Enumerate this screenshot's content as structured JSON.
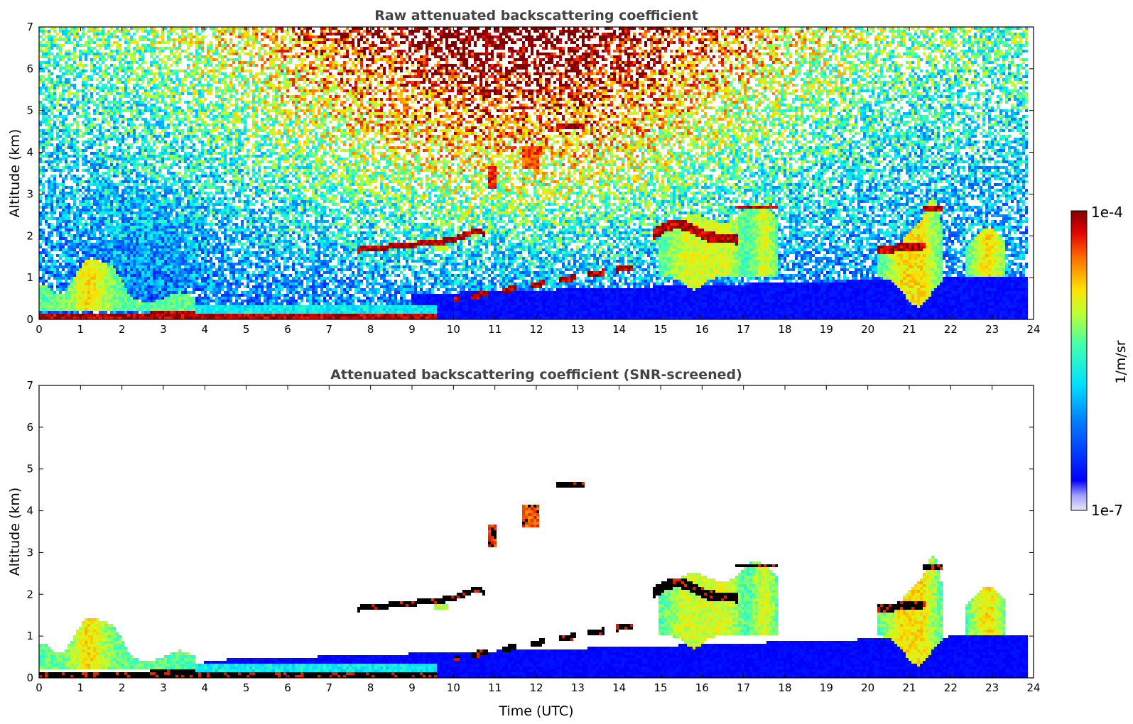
{
  "chart_data": [
    {
      "type": "heatmap",
      "title": "Raw attenuated backscattering coefficient",
      "xlabel": "",
      "ylabel": "Altitude (km)",
      "xlim": [
        0,
        24
      ],
      "ylim": [
        0,
        7
      ],
      "xticks": [
        0,
        1,
        2,
        3,
        4,
        5,
        6,
        7,
        8,
        9,
        10,
        11,
        12,
        13,
        14,
        15,
        16,
        17,
        18,
        19,
        20,
        21,
        22,
        23,
        24
      ],
      "yticks": [
        0,
        1,
        2,
        3,
        4,
        5,
        6,
        7
      ],
      "x_data_end": 23.8,
      "colormap": "jet",
      "color_scale": "log",
      "clim": [
        1e-07,
        0.0001
      ],
      "features": [
        {
          "kind": "surface-layer",
          "x": [
            0,
            9.5
          ],
          "y_top": 0.25,
          "value": "1e-4"
        },
        {
          "kind": "low-cloud",
          "x": [
            0,
            3.7
          ],
          "y": [
            0.2,
            1.6
          ],
          "value": "2e-6"
        },
        {
          "kind": "aerosol-layer",
          "x": [
            7.7,
            10.8
          ],
          "y": [
            1.6,
            2.3
          ],
          "value": "1e-4"
        },
        {
          "kind": "cloud",
          "x": [
            10.8,
            11.1
          ],
          "y": [
            3.1,
            3.7
          ],
          "value": "1e-4"
        },
        {
          "kind": "cloud",
          "x": [
            11.6,
            12.1
          ],
          "y": [
            3.6,
            4.2
          ],
          "value": "1e-4"
        },
        {
          "kind": "cloud",
          "x": [
            12.4,
            13.2
          ],
          "y": [
            4.5,
            4.7
          ],
          "value": "1e-4"
        },
        {
          "kind": "cloud",
          "x": [
            14.8,
            17.7
          ],
          "y": [
            0.8,
            2.7
          ],
          "value": "1e-5"
        },
        {
          "kind": "cloud",
          "x": [
            20.3,
            23.2
          ],
          "y": [
            0.4,
            2.8
          ],
          "value": "1e-5"
        }
      ]
    },
    {
      "type": "heatmap",
      "title": "Attenuated backscattering coefficient (SNR-screened)",
      "xlabel": "Time (UTC)",
      "ylabel": "Altitude (km)",
      "xlim": [
        0,
        24
      ],
      "ylim": [
        0,
        7
      ],
      "xticks": [
        0,
        1,
        2,
        3,
        4,
        5,
        6,
        7,
        8,
        9,
        10,
        11,
        12,
        13,
        14,
        15,
        16,
        17,
        18,
        19,
        20,
        21,
        22,
        23,
        24
      ],
      "yticks": [
        0,
        1,
        2,
        3,
        4,
        5,
        6,
        7
      ],
      "x_data_end": 23.8,
      "colormap": "jet",
      "color_scale": "log",
      "clim": [
        1e-07,
        0.0001
      ],
      "note_colors": {
        "saturated": "#000000",
        "screened": "#ffffff"
      }
    }
  ],
  "colorbar": {
    "label": "1/m/sr",
    "max_label": "1e-4",
    "min_label": "1e-7",
    "colormap": "jet"
  }
}
